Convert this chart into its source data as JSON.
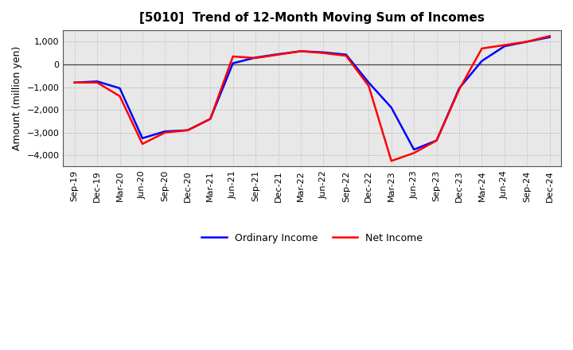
{
  "title": "[5010]  Trend of 12-Month Moving Sum of Incomes",
  "ylabel": "Amount (million yen)",
  "x_labels": [
    "Sep-19",
    "Dec-19",
    "Mar-20",
    "Jun-20",
    "Sep-20",
    "Dec-20",
    "Mar-21",
    "Jun-21",
    "Sep-21",
    "Dec-21",
    "Mar-22",
    "Jun-22",
    "Sep-22",
    "Dec-22",
    "Mar-23",
    "Jun-23",
    "Sep-23",
    "Dec-23",
    "Mar-24",
    "Jun-24",
    "Sep-24",
    "Dec-24"
  ],
  "ordinary_income": [
    -800,
    -750,
    -1050,
    -3250,
    -2950,
    -2900,
    -2400,
    50,
    300,
    450,
    580,
    530,
    430,
    -800,
    -1900,
    -3750,
    -3350,
    -1050,
    150,
    800,
    1000,
    1200
  ],
  "net_income": [
    -800,
    -800,
    -1400,
    -3500,
    -3000,
    -2900,
    -2400,
    350,
    280,
    430,
    580,
    500,
    380,
    -950,
    -4250,
    -3900,
    -3350,
    -1100,
    700,
    850,
    1000,
    1250
  ],
  "ordinary_color": "#0000ff",
  "net_color": "#ff0000",
  "ylim": [
    -4500,
    1500
  ],
  "yticks": [
    -4000,
    -3000,
    -2000,
    -1000,
    0,
    1000
  ],
  "plot_bg_color": "#e8e8e8",
  "fig_bg_color": "#ffffff",
  "grid_color": "#888888",
  "zero_line_color": "#444444",
  "line_width": 1.8,
  "title_fontsize": 11,
  "axis_fontsize": 8,
  "ylabel_fontsize": 9,
  "legend_fontsize": 9
}
